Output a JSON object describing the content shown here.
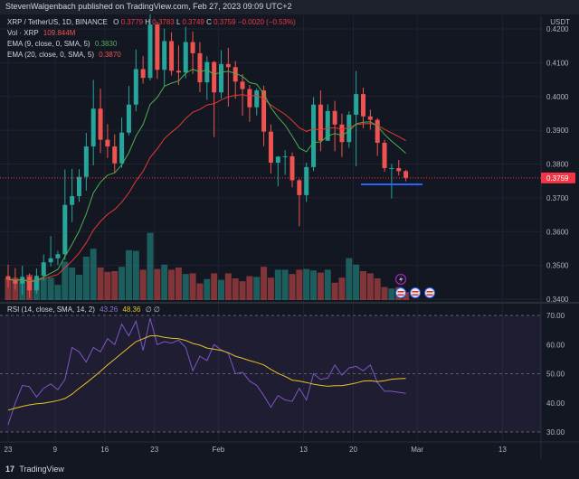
{
  "header": {
    "publisher": "StevenWalgenbach published on TradingView.com, Feb 27, 2023 09:09 UTC+2"
  },
  "currency_label": "USDT",
  "legend": {
    "symbol": "XRP / TetherUS, 1D, BINANCE",
    "ohlc": {
      "o_label": "O",
      "o": "0.3779",
      "h_label": "H",
      "h": "0.3783",
      "l_label": "L",
      "l": "0.3749",
      "c_label": "C",
      "c": "0.3759",
      "chg": "−0.0020 (−0.53%)"
    },
    "vol_label": "Vol · XRP",
    "vol_value": "109.844M",
    "ema9_label": "EMA (9, close, 0, SMA, 5)",
    "ema9_value": "0.3830",
    "ema20_label": "EMA (20, close, 0, SMA, 5)",
    "ema20_value": "0.3870",
    "rsi_label": "RSI (14, close, SMA, 14, 2)",
    "rsi_value": "43.26",
    "rsi_ma_value": "48.36",
    "rsi_extra": "∅ ∅"
  },
  "brand": {
    "logo": "17",
    "name": "TradingView"
  },
  "colors": {
    "up": "#26a69a",
    "down": "#ef5350",
    "ema9": "#4caf50",
    "ema20": "#e53935",
    "rsi": "#7e57c2",
    "rsi_ma": "#e6c229",
    "trend": "#2962ff",
    "current": "#f23645"
  },
  "chart_data": {
    "type": "candlestick",
    "price_axis": {
      "min": 0.34,
      "max": 0.421,
      "ticks": [
        "0.4200",
        "0.4100",
        "0.4000",
        "0.3900",
        "0.3800",
        "0.3700",
        "0.3600",
        "0.3500",
        "0.3400"
      ],
      "tick_values": [
        0.42,
        0.41,
        0.4,
        0.39,
        0.38,
        0.37,
        0.36,
        0.35,
        0.34
      ]
    },
    "current_price": {
      "value": 0.3759,
      "label": "0.3759"
    },
    "x_ticks": [
      {
        "label": "23",
        "index": 0
      },
      {
        "label": "9",
        "index": 6.6
      },
      {
        "label": "16",
        "index": 13.6
      },
      {
        "label": "23",
        "index": 20.6
      },
      {
        "label": "Feb",
        "index": 29.6
      },
      {
        "label": "13",
        "index": 41.6
      },
      {
        "label": "20",
        "index": 48.6
      },
      {
        "label": "Mar",
        "index": 57.6
      },
      {
        "label": "13",
        "index": 69.6
      }
    ],
    "candles": [
      {
        "o": 0.3468,
        "h": 0.3502,
        "l": 0.3434,
        "c": 0.3458
      },
      {
        "o": 0.3458,
        "h": 0.3492,
        "l": 0.3428,
        "c": 0.3446
      },
      {
        "o": 0.3446,
        "h": 0.3499,
        "l": 0.3413,
        "c": 0.3466
      },
      {
        "o": 0.3466,
        "h": 0.3476,
        "l": 0.3404,
        "c": 0.3426
      },
      {
        "o": 0.3426,
        "h": 0.3491,
        "l": 0.3416,
        "c": 0.3469
      },
      {
        "o": 0.3469,
        "h": 0.3532,
        "l": 0.3455,
        "c": 0.3509
      },
      {
        "o": 0.3509,
        "h": 0.3587,
        "l": 0.3497,
        "c": 0.3521
      },
      {
        "o": 0.3521,
        "h": 0.3543,
        "l": 0.3501,
        "c": 0.3533
      },
      {
        "o": 0.3533,
        "h": 0.3784,
        "l": 0.3516,
        "c": 0.3679
      },
      {
        "o": 0.3679,
        "h": 0.3786,
        "l": 0.3628,
        "c": 0.3705
      },
      {
        "o": 0.3705,
        "h": 0.3785,
        "l": 0.3688,
        "c": 0.3762
      },
      {
        "o": 0.3762,
        "h": 0.3892,
        "l": 0.3721,
        "c": 0.3852
      },
      {
        "o": 0.3852,
        "h": 0.4049,
        "l": 0.3796,
        "c": 0.3964
      },
      {
        "o": 0.3964,
        "h": 0.4023,
        "l": 0.3832,
        "c": 0.3872
      },
      {
        "o": 0.3872,
        "h": 0.3918,
        "l": 0.3818,
        "c": 0.3852
      },
      {
        "o": 0.3852,
        "h": 0.3888,
        "l": 0.3774,
        "c": 0.3802
      },
      {
        "o": 0.3802,
        "h": 0.3938,
        "l": 0.3789,
        "c": 0.3893
      },
      {
        "o": 0.3893,
        "h": 0.4031,
        "l": 0.3885,
        "c": 0.3976
      },
      {
        "o": 0.3976,
        "h": 0.4139,
        "l": 0.3956,
        "c": 0.4081
      },
      {
        "o": 0.4081,
        "h": 0.4119,
        "l": 0.4038,
        "c": 0.4055
      },
      {
        "o": 0.4055,
        "h": 0.4251,
        "l": 0.4047,
        "c": 0.4213
      },
      {
        "o": 0.4213,
        "h": 0.4221,
        "l": 0.4052,
        "c": 0.4079
      },
      {
        "o": 0.4079,
        "h": 0.4201,
        "l": 0.4029,
        "c": 0.4164
      },
      {
        "o": 0.4164,
        "h": 0.419,
        "l": 0.4062,
        "c": 0.4076
      },
      {
        "o": 0.4076,
        "h": 0.4151,
        "l": 0.4034,
        "c": 0.4071
      },
      {
        "o": 0.4071,
        "h": 0.4206,
        "l": 0.4054,
        "c": 0.4161
      },
      {
        "o": 0.4161,
        "h": 0.4192,
        "l": 0.4067,
        "c": 0.4128
      },
      {
        "o": 0.4128,
        "h": 0.4161,
        "l": 0.4013,
        "c": 0.4042
      },
      {
        "o": 0.4042,
        "h": 0.4119,
        "l": 0.399,
        "c": 0.4102
      },
      {
        "o": 0.4102,
        "h": 0.4105,
        "l": 0.388,
        "c": 0.4012
      },
      {
        "o": 0.4012,
        "h": 0.4137,
        "l": 0.3994,
        "c": 0.4096
      },
      {
        "o": 0.4096,
        "h": 0.4144,
        "l": 0.397,
        "c": 0.4087
      },
      {
        "o": 0.4087,
        "h": 0.4105,
        "l": 0.3993,
        "c": 0.4044
      },
      {
        "o": 0.4044,
        "h": 0.4066,
        "l": 0.3943,
        "c": 0.4022
      },
      {
        "o": 0.4022,
        "h": 0.4034,
        "l": 0.3925,
        "c": 0.3968
      },
      {
        "o": 0.3968,
        "h": 0.4024,
        "l": 0.3944,
        "c": 0.4018
      },
      {
        "o": 0.4018,
        "h": 0.4032,
        "l": 0.3853,
        "c": 0.3896
      },
      {
        "o": 0.3896,
        "h": 0.3917,
        "l": 0.3772,
        "c": 0.3804
      },
      {
        "o": 0.3804,
        "h": 0.3823,
        "l": 0.3734,
        "c": 0.3822
      },
      {
        "o": 0.3822,
        "h": 0.3841,
        "l": 0.3768,
        "c": 0.3823
      },
      {
        "o": 0.3823,
        "h": 0.3834,
        "l": 0.3731,
        "c": 0.3752
      },
      {
        "o": 0.3752,
        "h": 0.3756,
        "l": 0.3616,
        "c": 0.3708
      },
      {
        "o": 0.3708,
        "h": 0.3804,
        "l": 0.3688,
        "c": 0.3791
      },
      {
        "o": 0.3791,
        "h": 0.3998,
        "l": 0.3779,
        "c": 0.3976
      },
      {
        "o": 0.3976,
        "h": 0.4018,
        "l": 0.3838,
        "c": 0.3869
      },
      {
        "o": 0.3869,
        "h": 0.3977,
        "l": 0.3868,
        "c": 0.3957
      },
      {
        "o": 0.3957,
        "h": 0.3987,
        "l": 0.3838,
        "c": 0.3917
      },
      {
        "o": 0.3917,
        "h": 0.3949,
        "l": 0.3821,
        "c": 0.3865
      },
      {
        "o": 0.3865,
        "h": 0.3956,
        "l": 0.3848,
        "c": 0.3946
      },
      {
        "o": 0.3946,
        "h": 0.4075,
        "l": 0.3793,
        "c": 0.4007
      },
      {
        "o": 0.4007,
        "h": 0.4026,
        "l": 0.3906,
        "c": 0.3941
      },
      {
        "o": 0.3941,
        "h": 0.3961,
        "l": 0.3902,
        "c": 0.3931
      },
      {
        "o": 0.3931,
        "h": 0.3936,
        "l": 0.3824,
        "c": 0.3863
      },
      {
        "o": 0.3863,
        "h": 0.3872,
        "l": 0.3777,
        "c": 0.3788
      },
      {
        "o": 0.3788,
        "h": 0.38,
        "l": 0.3698,
        "c": 0.3788
      },
      {
        "o": 0.3788,
        "h": 0.3812,
        "l": 0.3766,
        "c": 0.3779
      },
      {
        "o": 0.3779,
        "h": 0.3783,
        "l": 0.3749,
        "c": 0.3759
      }
    ],
    "volume": [
      0.3,
      0.31,
      0.27,
      0.35,
      0.29,
      0.3,
      0.31,
      0.21,
      0.53,
      0.45,
      0.35,
      0.6,
      0.71,
      0.45,
      0.39,
      0.4,
      0.46,
      0.69,
      0.68,
      0.42,
      0.93,
      0.43,
      0.49,
      0.42,
      0.45,
      0.36,
      0.37,
      0.23,
      0.29,
      0.37,
      0.28,
      0.37,
      0.3,
      0.26,
      0.33,
      0.32,
      0.46,
      0.31,
      0.42,
      0.42,
      0.36,
      0.42,
      0.43,
      0.41,
      0.38,
      0.42,
      0.24,
      0.31,
      0.58,
      0.49,
      0.4,
      0.37,
      0.3,
      0.18,
      0.16,
      0.18,
      0.11
    ],
    "rsi": [
      32.5,
      40,
      46,
      45.5,
      42,
      45,
      46.5,
      44.5,
      48,
      59,
      57.5,
      54,
      59,
      57.5,
      62,
      60,
      67,
      63,
      68,
      58,
      69,
      60,
      61,
      60.5,
      61.5,
      59,
      51,
      56,
      54.5,
      60,
      58.2,
      57,
      50,
      50.5,
      47.5,
      46,
      42.5,
      38.5,
      42.5,
      41,
      40.5,
      45,
      41,
      50,
      48,
      48.5,
      53,
      49.5,
      52,
      52.5,
      51,
      53,
      47,
      44,
      44,
      43.6,
      43.26
    ],
    "rsi_ma": [
      37.5,
      38.2,
      38.8,
      39.3,
      39.7,
      39.9,
      40.3,
      40.8,
      41.5,
      43,
      45,
      46.8,
      48.8,
      50.8,
      53,
      55,
      57,
      59,
      61,
      62,
      63,
      63,
      62.5,
      62.2,
      62,
      61.4,
      60.4,
      59.8,
      58.8,
      58.4,
      58,
      57.2,
      56,
      55.3,
      54.5,
      53.8,
      53,
      51.5,
      50.1,
      49.1,
      47.8,
      47.5,
      47,
      46.4,
      46,
      45.7,
      45.9,
      45.9,
      46.3,
      46.8,
      47.5,
      47.6,
      47.3,
      47.6,
      48.1,
      48.3,
      48.36
    ],
    "rsi_axis": {
      "min": 30,
      "max": 70,
      "ticks": [
        "70.00",
        "60.00",
        "50.00",
        "40.00",
        "30.00"
      ],
      "tick_values": [
        70,
        60,
        50,
        40,
        30
      ]
    },
    "rsi_band": [
      30,
      70
    ]
  }
}
